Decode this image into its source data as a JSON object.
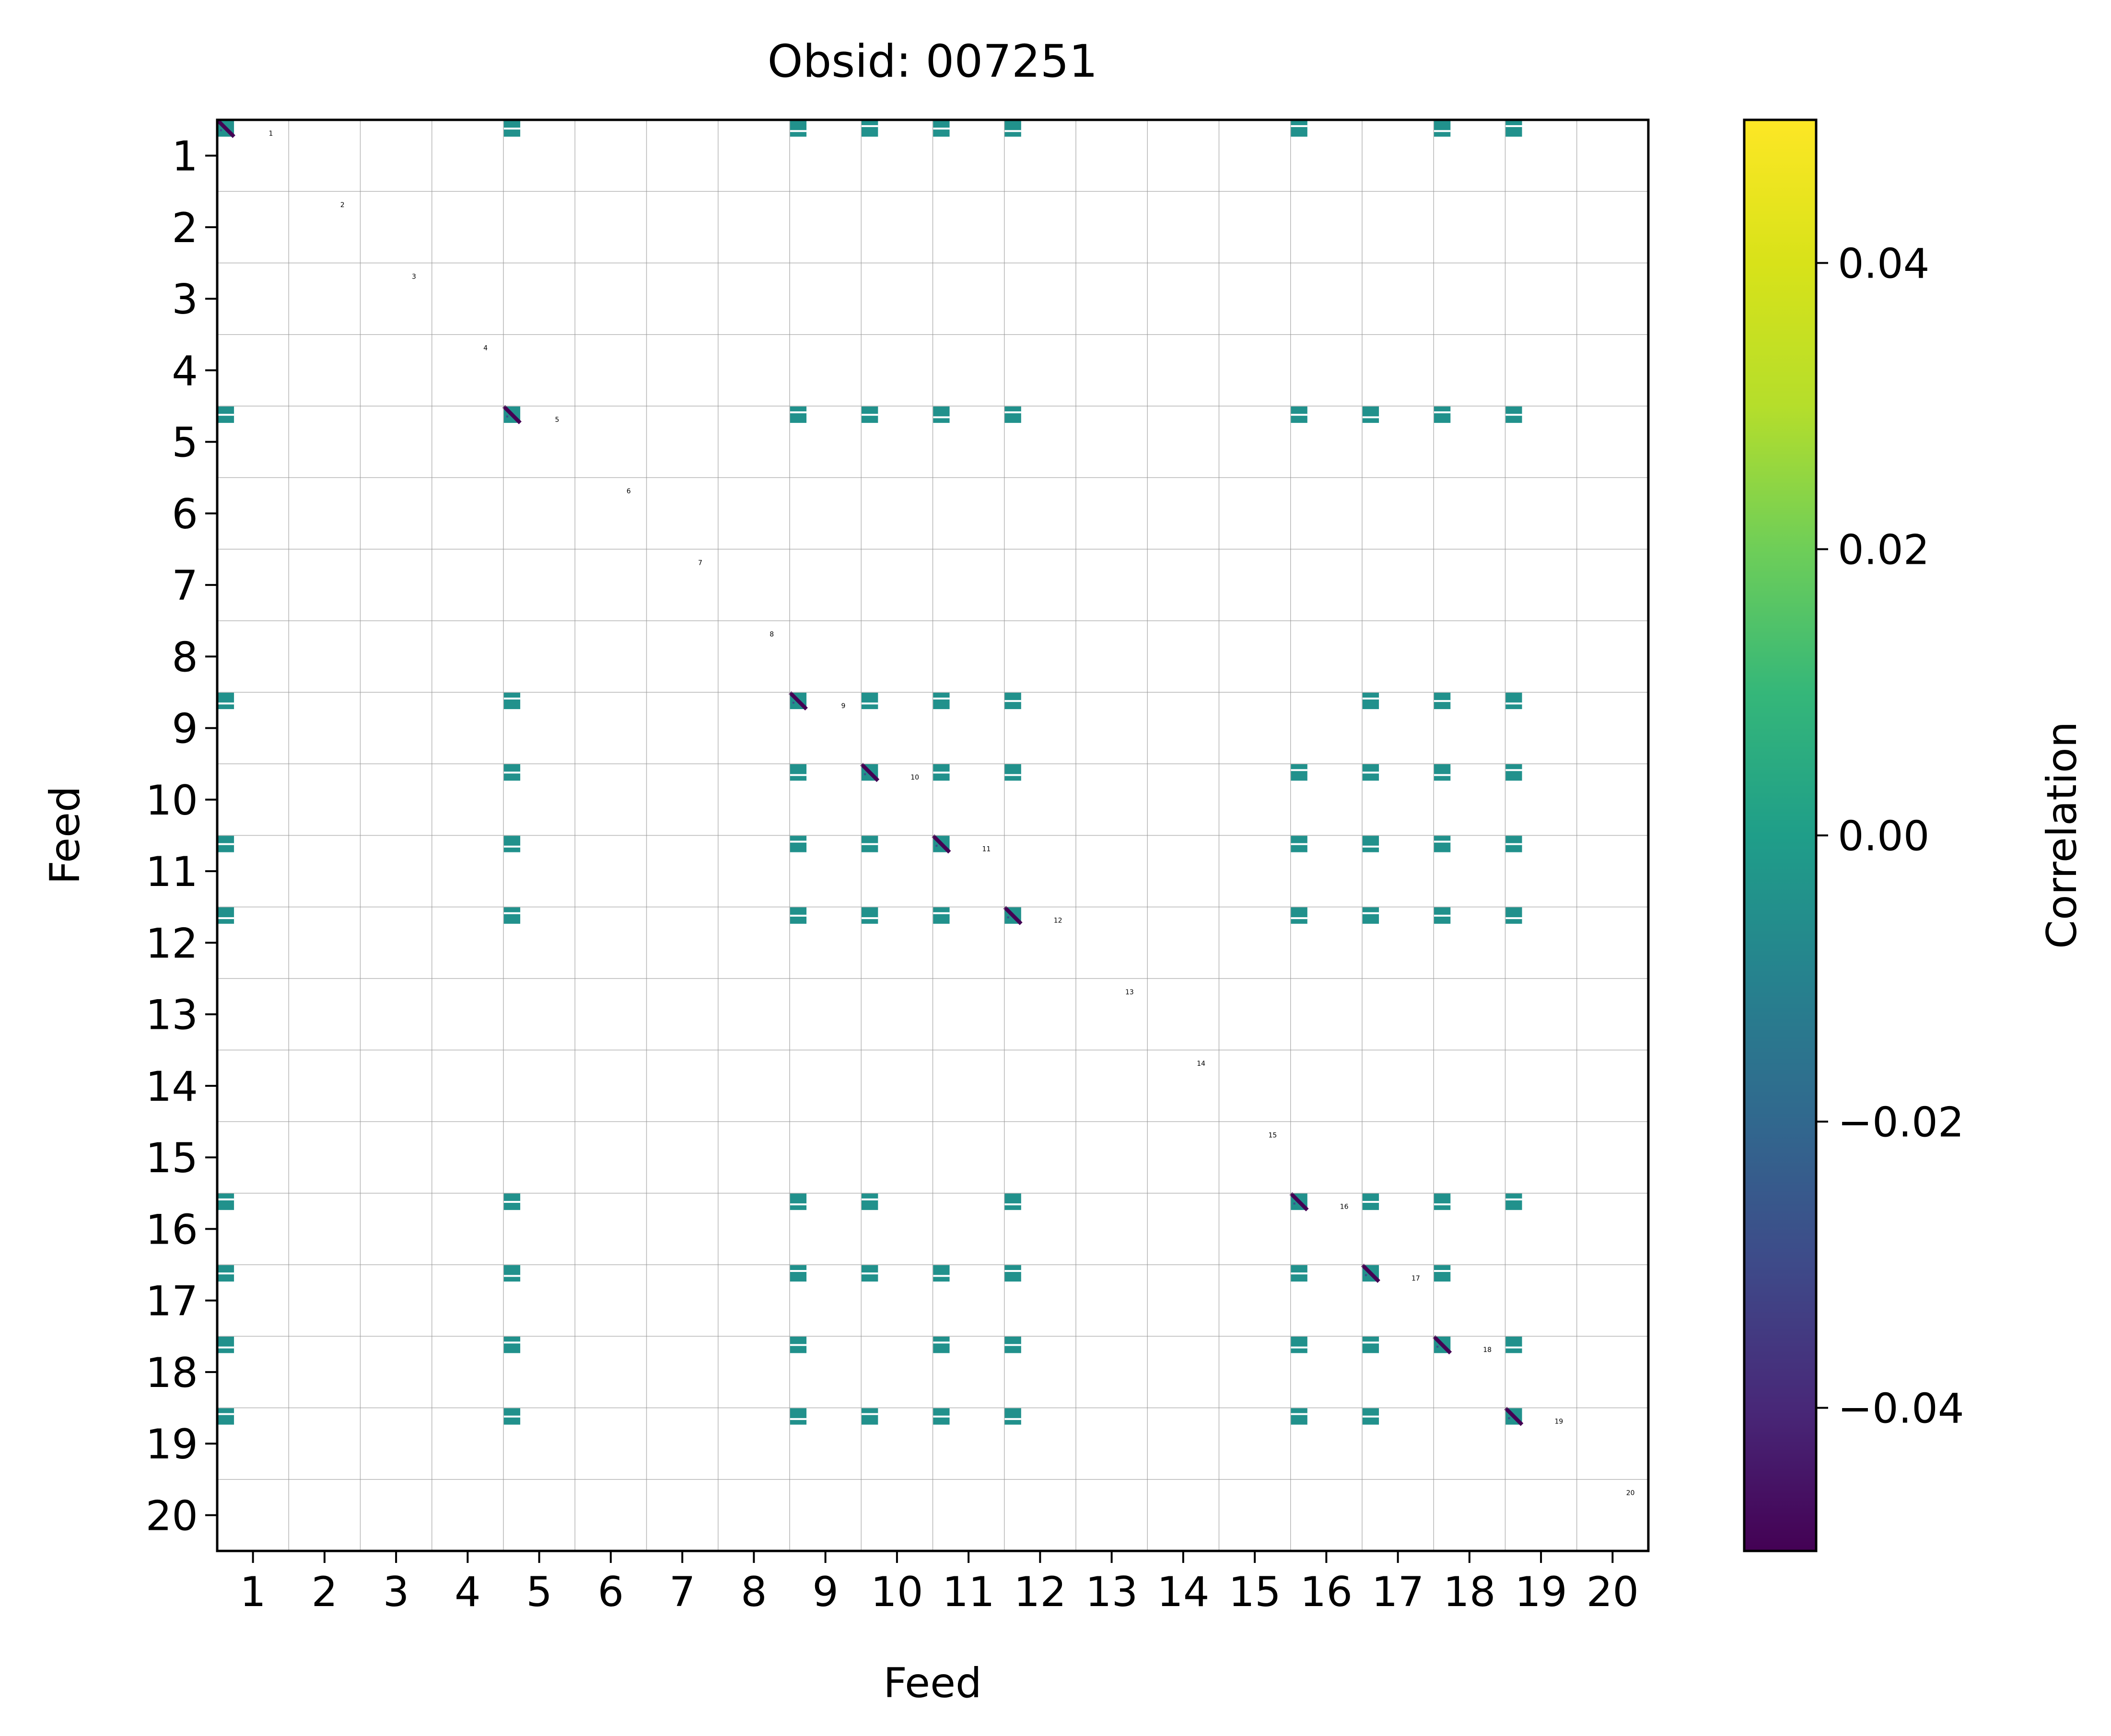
{
  "chart_data": {
    "type": "heatmap",
    "title": "Obsid: 007251",
    "xlabel": "Feed",
    "ylabel": "Feed",
    "x_tick_labels": [
      "1",
      "2",
      "3",
      "4",
      "5",
      "6",
      "7",
      "8",
      "9",
      "10",
      "11",
      "12",
      "13",
      "14",
      "15",
      "16",
      "17",
      "18",
      "19",
      "20"
    ],
    "y_tick_labels": [
      "1",
      "2",
      "3",
      "4",
      "5",
      "6",
      "7",
      "8",
      "9",
      "10",
      "11",
      "12",
      "13",
      "14",
      "15",
      "16",
      "17",
      "18",
      "19",
      "20"
    ],
    "feeds": [
      "1",
      "2",
      "3",
      "4",
      "5",
      "6",
      "7",
      "8",
      "9",
      "10",
      "11",
      "12",
      "13",
      "14",
      "15",
      "16",
      "17",
      "18",
      "19",
      "20"
    ],
    "grid": true,
    "colorbar": {
      "label": "Correlation",
      "range": [
        -0.05,
        0.05
      ],
      "ticks": [
        0.04,
        0.02,
        0.0,
        -0.02,
        -0.04
      ],
      "tick_labels": [
        "0.04",
        "0.02",
        "0.00",
        "−0.02",
        "−0.04"
      ],
      "colormap": "viridis"
    },
    "blocks_per_feed": 4,
    "active_feeds": [
      "1",
      "5",
      "9",
      "10",
      "11",
      "12",
      "16",
      "17",
      "18",
      "19"
    ],
    "typical_offdiagonal_value": 0.0,
    "diagonal_value": -0.05,
    "offdiagonal_fill_color": "#21918c",
    "diagonal_color": "#440154"
  }
}
